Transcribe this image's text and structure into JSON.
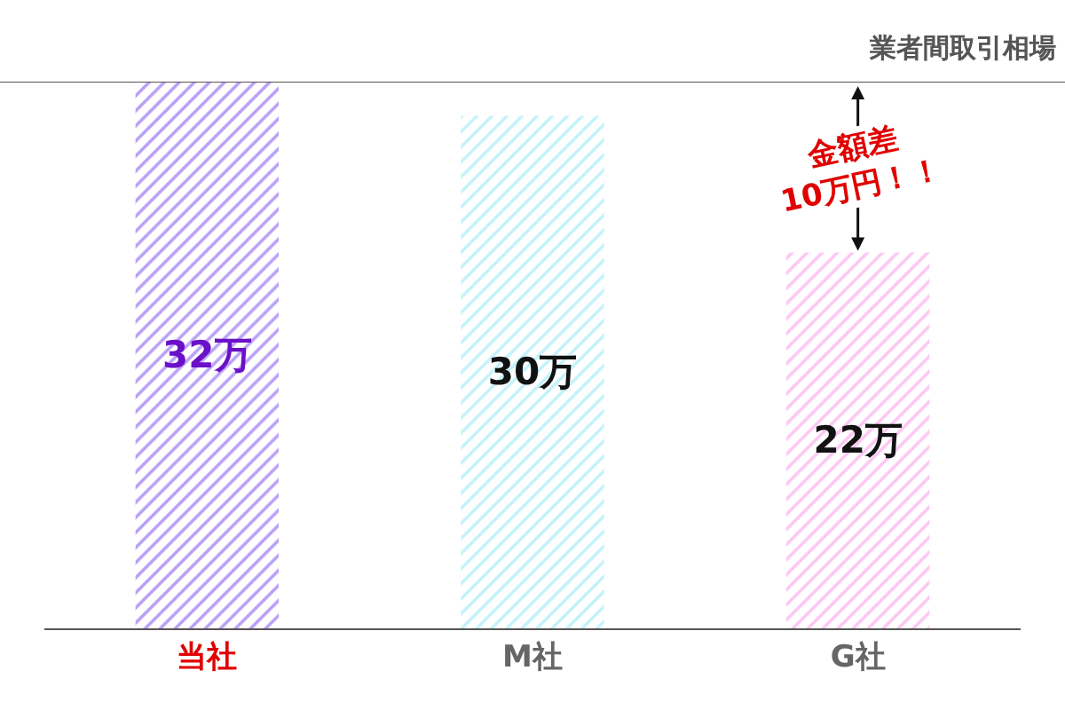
{
  "chart_data": {
    "type": "bar",
    "categories": [
      "当社",
      "M社",
      "G社"
    ],
    "values": [
      32,
      30,
      22
    ],
    "colors": [
      "#b9a0f7",
      "#c4f2fb",
      "#fdc6f3"
    ],
    "value_labels": [
      "32万",
      "30万",
      "22万"
    ],
    "ylim": [
      0,
      32
    ],
    "tick_labels": "x",
    "ref_lines": [
      {
        "axis": "y",
        "value": 32,
        "label": "業者間取引相場",
        "color": "#555555"
      }
    ],
    "annotations": [
      "金額差\n10万円！！"
    ]
  }
}
